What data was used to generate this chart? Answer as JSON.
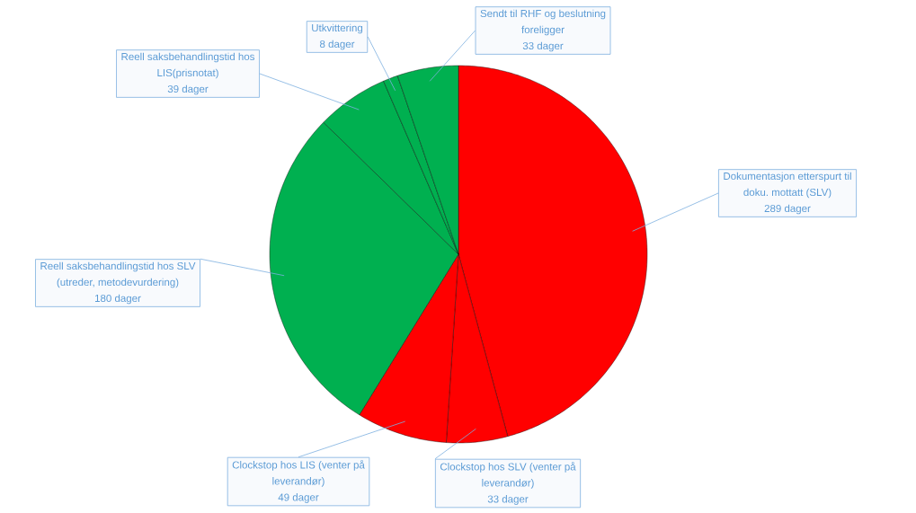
{
  "chart_data": {
    "type": "pie",
    "categories": [
      "Dokumentasjon etterspurt til doku. mottatt (SLV)",
      "Clockstop hos SLV (venter på leverandør)",
      "Clockstop hos LIS (venter på leverandør)",
      "Reell saksbehandlingstid hos SLV (utreder, metodevurdering)",
      "Reell saksbehandlingstid hos LIS(prisnotat)",
      "Utkvittering",
      "Sendt til RHF og beslutning foreligger"
    ],
    "values": [
      289,
      33,
      49,
      180,
      39,
      8,
      33
    ],
    "value_labels": [
      "289 dager",
      "33 dager",
      "49 dager",
      "180 dager",
      "39 dager",
      "8 dager",
      "33 dager"
    ],
    "colors": [
      "#ff0000",
      "#ff0000",
      "#ff0000",
      "#00b050",
      "#00b050",
      "#00b050",
      "#00b050"
    ]
  }
}
